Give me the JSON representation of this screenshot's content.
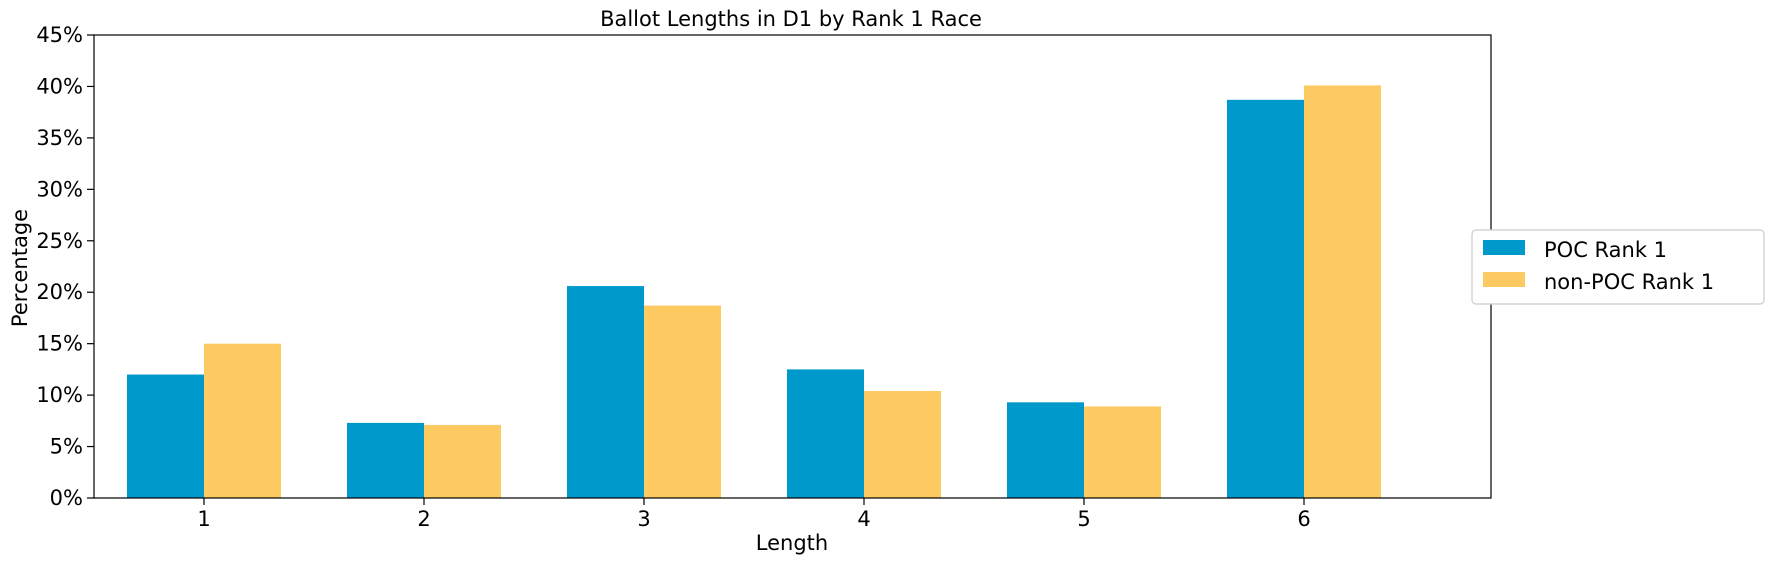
{
  "chart_data": {
    "type": "bar",
    "title": "Ballot Lengths in D1 by Rank 1 Race",
    "xlabel": "Length",
    "ylabel": "Percentage",
    "categories": [
      "1",
      "2",
      "3",
      "4",
      "5",
      "6"
    ],
    "ylim": [
      0,
      45
    ],
    "yticks": [
      0,
      5,
      10,
      15,
      20,
      25,
      30,
      35,
      40,
      45
    ],
    "ytick_labels": [
      "0%",
      "5%",
      "10%",
      "15%",
      "20%",
      "25%",
      "30%",
      "35%",
      "40%",
      "45%"
    ],
    "grid": false,
    "legend_position": "outside-right",
    "series": [
      {
        "name": "POC Rank 1",
        "color": "#0099CC",
        "values": [
          12.0,
          7.3,
          20.6,
          12.5,
          9.3,
          38.7
        ]
      },
      {
        "name": "non-POC Rank 1",
        "color": "#FDC961",
        "values": [
          15.0,
          7.1,
          18.7,
          10.4,
          8.9,
          40.1
        ]
      }
    ]
  }
}
